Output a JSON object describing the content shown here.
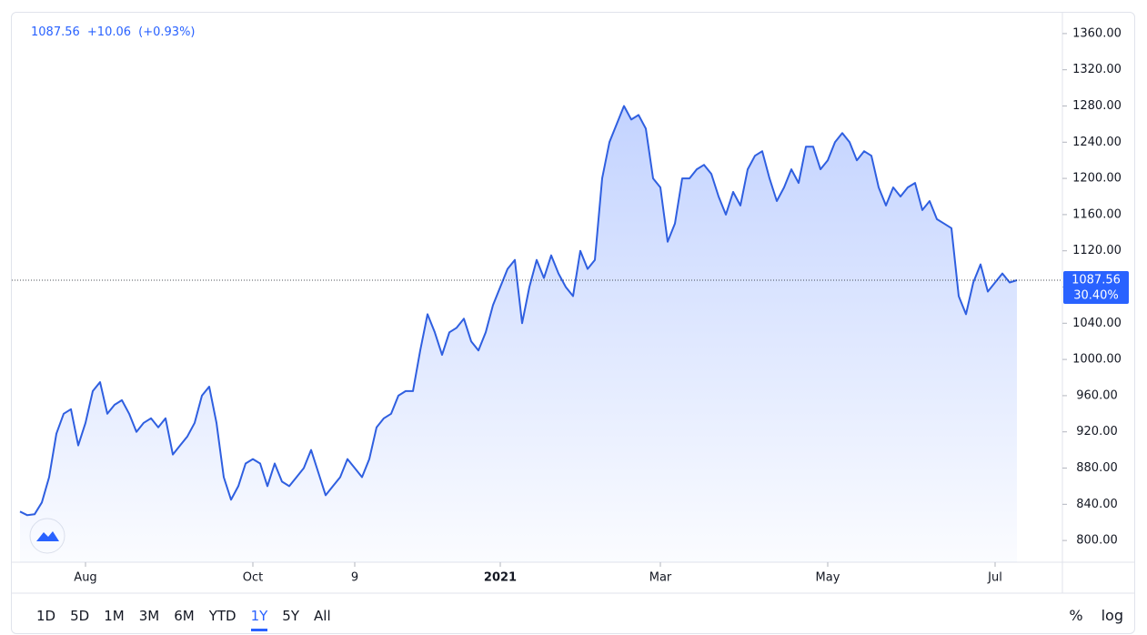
{
  "chart_data": {
    "type": "line",
    "header_change": "+10.06",
    "header_change_pct": "(+0.93%)",
    "price_badge_change": "30.40%",
    "categories": [
      null,
      null,
      null,
      null,
      null,
      null,
      null,
      null,
      null,
      "Aug",
      null,
      null,
      null,
      null,
      null,
      null,
      null,
      null,
      null,
      null,
      null,
      null,
      null,
      null,
      null,
      null,
      null,
      null,
      null,
      null,
      null,
      null,
      "Oct",
      null,
      null,
      null,
      null,
      null,
      null,
      null,
      null,
      null,
      null,
      null,
      null,
      null,
      "9",
      null,
      null,
      null,
      null,
      null,
      null,
      null,
      null,
      null,
      null,
      null,
      null,
      null,
      null,
      null,
      null,
      null,
      null,
      null,
      "2021",
      null,
      null,
      null,
      null,
      null,
      null,
      null,
      null,
      null,
      null,
      null,
      null,
      null,
      null,
      null,
      null,
      null,
      null,
      null,
      null,
      null,
      "Mar",
      null,
      null,
      null,
      null,
      null,
      null,
      null,
      null,
      null,
      null,
      null,
      null,
      null,
      null,
      null,
      null,
      null,
      null,
      null,
      null,
      null,
      null,
      "May",
      null,
      null,
      null,
      null,
      null,
      null,
      null,
      null,
      null,
      null,
      null,
      null,
      null,
      null,
      null,
      null,
      null,
      null,
      null,
      null,
      null,
      null,
      "Jul",
      null,
      null,
      null
    ],
    "series": [
      {
        "color": "#2f5fe0",
        "values": [
          832,
          828,
          829,
          842,
          870,
          918,
          940,
          945,
          905,
          930,
          965,
          975,
          940,
          950,
          955,
          940,
          920,
          930,
          935,
          925,
          935,
          895,
          905,
          915,
          930,
          960,
          970,
          930,
          870,
          845,
          860,
          885,
          890,
          885,
          860,
          885,
          865,
          860,
          870,
          880,
          900,
          875,
          850,
          860,
          870,
          890,
          880,
          870,
          890,
          925,
          935,
          940,
          960,
          965,
          965,
          1010,
          1050,
          1030,
          1005,
          1030,
          1035,
          1045,
          1020,
          1010,
          1030,
          1060,
          1080,
          1100,
          1110,
          1040,
          1080,
          1110,
          1090,
          1115,
          1095,
          1080,
          1070,
          1120,
          1100,
          1110,
          1200,
          1240,
          1260,
          1280,
          1265,
          1270,
          1255,
          1200,
          1190,
          1130,
          1150,
          1200,
          1200,
          1210,
          1215,
          1205,
          1180,
          1160,
          1185,
          1170,
          1210,
          1225,
          1230,
          1200,
          1175,
          1190,
          1210,
          1195,
          1235,
          1235,
          1210,
          1220,
          1240,
          1250,
          1240,
          1220,
          1230,
          1225,
          1190,
          1170,
          1190,
          1180,
          1190,
          1195,
          1165,
          1175,
          1155,
          1150,
          1145,
          1070,
          1050,
          1085,
          1105,
          1075,
          1085,
          1095,
          1085,
          1087.56
        ]
      }
    ],
    "ylim": [
      776,
      1383
    ],
    "yticks": [
      {
        "value": 800,
        "label": "800.00"
      },
      {
        "value": 840,
        "label": "840.00"
      },
      {
        "value": 880,
        "label": "880.00"
      },
      {
        "value": 920,
        "label": "920.00"
      },
      {
        "value": 960,
        "label": "960.00"
      },
      {
        "value": 1000,
        "label": "1000.00"
      },
      {
        "value": 1040,
        "label": "1040.00"
      },
      {
        "value": 1080,
        "label": "1080.00"
      },
      {
        "value": 1120,
        "label": "1120.00"
      },
      {
        "value": 1160,
        "label": "1160.00"
      },
      {
        "value": 1200,
        "label": "1200.00"
      },
      {
        "value": 1240,
        "label": "1240.00"
      },
      {
        "value": 1280,
        "label": "1280.00"
      },
      {
        "value": 1320,
        "label": "1320.00"
      },
      {
        "value": 1360,
        "label": "1360.00"
      }
    ],
    "grid": false
  },
  "toolbar": {
    "ranges": [
      "1D",
      "5D",
      "1M",
      "3M",
      "6M",
      "YTD",
      "1Y",
      "5Y",
      "All"
    ],
    "tools": [
      "%",
      "log"
    ]
  }
}
